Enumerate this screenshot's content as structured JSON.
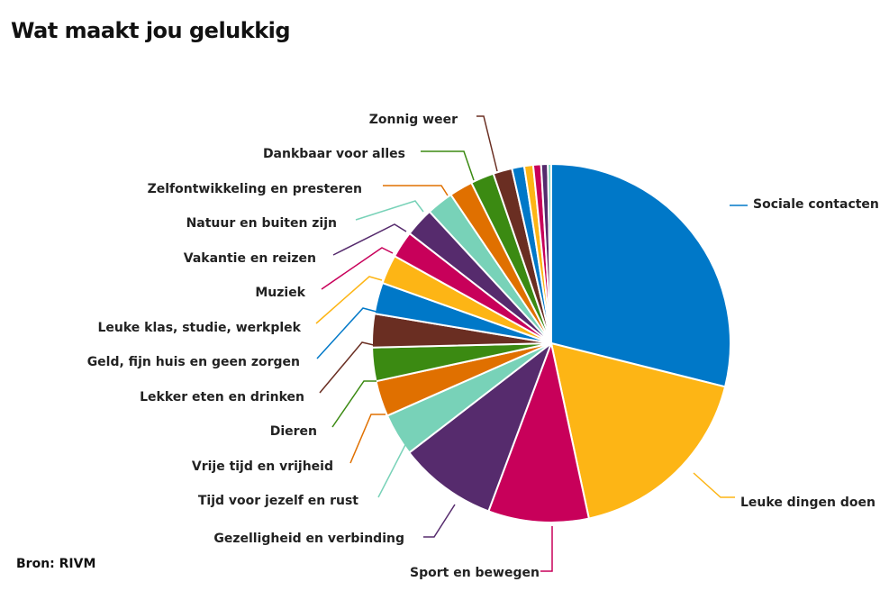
{
  "title": "Wat maakt jou gelukkig",
  "source": "Bron: RIVM",
  "chart_data": {
    "type": "pie",
    "title": "Wat maakt jou gelukkig",
    "slices": [
      {
        "label": "Sociale contacten",
        "value": 28.7,
        "color": "#0078C8"
      },
      {
        "label": "Leuke dingen doen",
        "value": 17.6,
        "color": "#FDB515"
      },
      {
        "label": "Sport en bewegen",
        "value": 9.0,
        "color": "#C8005A"
      },
      {
        "label": "Gezelligheid en verbinding",
        "value": 8.8,
        "color": "#562B6D"
      },
      {
        "label": "Tijd voor jezelf en rust",
        "value": 3.8,
        "color": "#78D2B8"
      },
      {
        "label": "Vrije tijd en vrijheid",
        "value": 3.2,
        "color": "#E07000"
      },
      {
        "label": "Dieren",
        "value": 3.0,
        "color": "#3B8A12"
      },
      {
        "label": "Lekker eten en drinken",
        "value": 3.0,
        "color": "#6A2E22"
      },
      {
        "label": "Geld, fijn huis en geen zorgen",
        "value": 2.8,
        "color": "#0078C8"
      },
      {
        "label": "Leuke klas, studie, werkplek",
        "value": 2.6,
        "color": "#FDB515"
      },
      {
        "label": "Muziek",
        "value": 2.4,
        "color": "#C8005A"
      },
      {
        "label": "Vakantie en reizen",
        "value": 2.6,
        "color": "#562B6D"
      },
      {
        "label": "Natuur en buiten zijn",
        "value": 2.4,
        "color": "#78D2B8"
      },
      {
        "label": "Zelfontwikkeling en presteren",
        "value": 2.1,
        "color": "#E07000"
      },
      {
        "label": "Dankbaar voor alles",
        "value": 2.1,
        "color": "#3B8A12"
      },
      {
        "label": "Zonnig weer",
        "value": 1.7,
        "color": "#6A2E22"
      },
      {
        "label": "",
        "value": 1.1,
        "color": "#0078C8"
      },
      {
        "label": "",
        "value": 0.8,
        "color": "#FDB515"
      },
      {
        "label": "",
        "value": 0.7,
        "color": "#C8005A"
      },
      {
        "label": "",
        "value": 0.6,
        "color": "#562B6D"
      },
      {
        "label": "",
        "value": 0.3,
        "color": "#78D2B8"
      }
    ]
  }
}
